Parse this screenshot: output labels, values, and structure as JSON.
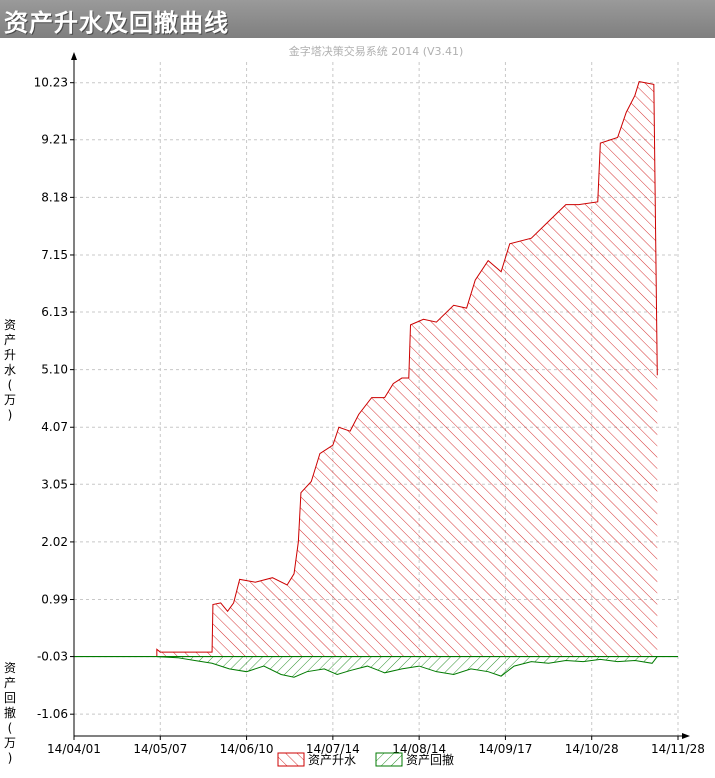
{
  "window": {
    "title": "资产升水及回撤曲线"
  },
  "colors": {
    "equity": "#cc0000",
    "drawdown": "#007a00",
    "grid": "#c8c8c8",
    "baseline": "#007a00"
  },
  "chart_data": {
    "type": "area",
    "subtitle": "金字塔决策交易系统 2014 (V3.41)",
    "ylabel_upper": "资产升水(万)",
    "ylabel_lower": "资产回撤(万)",
    "ylim": [
      -1.45,
      10.6
    ],
    "yticks": [
      "10.23",
      "9.21",
      "8.18",
      "7.15",
      "6.13",
      "5.10",
      "4.07",
      "3.05",
      "2.02",
      "0.99",
      "-0.03",
      "-1.06"
    ],
    "ytick_values": [
      10.23,
      9.21,
      8.18,
      7.15,
      6.13,
      5.1,
      4.07,
      3.05,
      2.02,
      0.99,
      -0.03,
      -1.06
    ],
    "xticks": [
      "14/04/01",
      "14/05/07",
      "14/06/10",
      "14/07/14",
      "14/08/14",
      "14/09/17",
      "14/10/28",
      "14/11/28"
    ],
    "x_domain": [
      0,
      7
    ],
    "legend": [
      "资产升水",
      "资产回撤"
    ],
    "grid": true,
    "series": [
      {
        "name": "资产升水",
        "points": [
          [
            0.96,
            -0.03
          ],
          [
            0.96,
            0.1
          ],
          [
            1.0,
            0.05
          ],
          [
            1.3,
            0.05
          ],
          [
            1.6,
            0.05
          ],
          [
            1.61,
            0.9
          ],
          [
            1.7,
            0.93
          ],
          [
            1.78,
            0.78
          ],
          [
            1.85,
            0.93
          ],
          [
            1.92,
            1.35
          ],
          [
            2.1,
            1.3
          ],
          [
            2.3,
            1.38
          ],
          [
            2.47,
            1.25
          ],
          [
            2.55,
            1.45
          ],
          [
            2.6,
            2.02
          ],
          [
            2.63,
            2.9
          ],
          [
            2.75,
            3.1
          ],
          [
            2.85,
            3.6
          ],
          [
            3.0,
            3.75
          ],
          [
            3.07,
            4.07
          ],
          [
            3.2,
            4.0
          ],
          [
            3.3,
            4.3
          ],
          [
            3.45,
            4.6
          ],
          [
            3.6,
            4.6
          ],
          [
            3.7,
            4.85
          ],
          [
            3.8,
            4.95
          ],
          [
            3.88,
            4.95
          ],
          [
            3.9,
            5.9
          ],
          [
            4.05,
            6.0
          ],
          [
            4.2,
            5.95
          ],
          [
            4.4,
            6.25
          ],
          [
            4.55,
            6.2
          ],
          [
            4.65,
            6.7
          ],
          [
            4.8,
            7.05
          ],
          [
            4.95,
            6.85
          ],
          [
            5.05,
            7.35
          ],
          [
            5.3,
            7.45
          ],
          [
            5.5,
            7.75
          ],
          [
            5.7,
            8.05
          ],
          [
            5.85,
            8.05
          ],
          [
            6.07,
            8.1
          ],
          [
            6.1,
            9.15
          ],
          [
            6.3,
            9.25
          ],
          [
            6.4,
            9.7
          ],
          [
            6.5,
            10.0
          ],
          [
            6.55,
            10.25
          ],
          [
            6.72,
            10.2
          ],
          [
            6.76,
            5.0
          ]
        ]
      },
      {
        "name": "资产回撤",
        "points": [
          [
            0.96,
            -0.03
          ],
          [
            1.2,
            -0.05
          ],
          [
            1.4,
            -0.1
          ],
          [
            1.6,
            -0.15
          ],
          [
            1.8,
            -0.25
          ],
          [
            2.0,
            -0.3
          ],
          [
            2.2,
            -0.2
          ],
          [
            2.4,
            -0.35
          ],
          [
            2.55,
            -0.4
          ],
          [
            2.7,
            -0.3
          ],
          [
            2.9,
            -0.25
          ],
          [
            3.05,
            -0.35
          ],
          [
            3.2,
            -0.28
          ],
          [
            3.4,
            -0.2
          ],
          [
            3.6,
            -0.32
          ],
          [
            3.8,
            -0.25
          ],
          [
            4.0,
            -0.2
          ],
          [
            4.2,
            -0.3
          ],
          [
            4.4,
            -0.35
          ],
          [
            4.6,
            -0.25
          ],
          [
            4.8,
            -0.3
          ],
          [
            4.95,
            -0.38
          ],
          [
            5.1,
            -0.2
          ],
          [
            5.3,
            -0.12
          ],
          [
            5.5,
            -0.15
          ],
          [
            5.7,
            -0.1
          ],
          [
            5.9,
            -0.12
          ],
          [
            6.1,
            -0.08
          ],
          [
            6.3,
            -0.12
          ],
          [
            6.5,
            -0.1
          ],
          [
            6.7,
            -0.15
          ],
          [
            6.76,
            -0.03
          ]
        ]
      }
    ]
  }
}
